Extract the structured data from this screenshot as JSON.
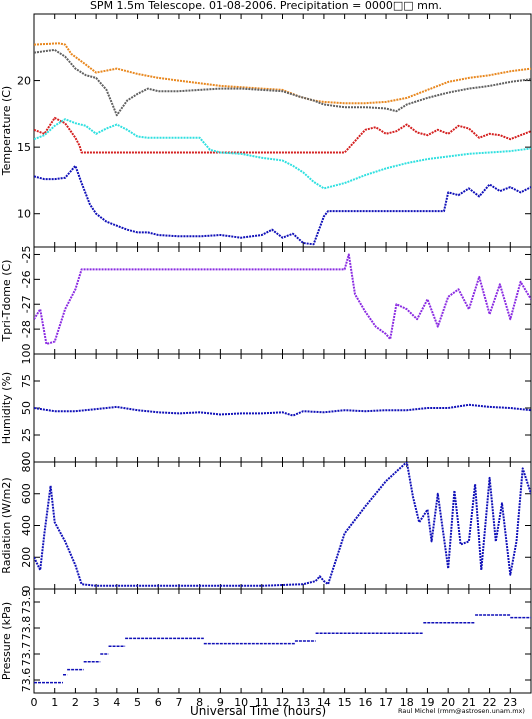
{
  "title": "SPM 1.5m Telescope. 01-08-2006. Precipitation = 0000□□ mm.",
  "xlabel": "Universal Time (hours)",
  "credit": "Raul Michel (rmm@astrosen.unam.mx)",
  "x_ticks": [
    "0",
    "1",
    "2",
    "3",
    "4",
    "5",
    "6",
    "7",
    "8",
    "9",
    "10",
    "11",
    "12",
    "13",
    "14",
    "15",
    "16",
    "17",
    "18",
    "19",
    "20",
    "21",
    "22",
    "23"
  ],
  "colors": {
    "orange": "#e8871e",
    "gray": "#606060",
    "red": "#d42020",
    "cyan": "#30e0e0",
    "blue": "#1010b8",
    "purple": "#8a2be2"
  },
  "chart_data": [
    {
      "type": "line",
      "ylabel": "Temperature (C)",
      "xlim": [
        0,
        24
      ],
      "ylim": [
        7.5,
        25
      ],
      "yticks": [
        10,
        15,
        20
      ],
      "series": [
        {
          "color": "#e8871e",
          "x": [
            0,
            1.2,
            1.5,
            1.8,
            2.5,
            3,
            4,
            5,
            6,
            7,
            8,
            9,
            10,
            11,
            12,
            12.8,
            13.5,
            14,
            15,
            16,
            17,
            18,
            19,
            20,
            21,
            22,
            23,
            24
          ],
          "y": [
            22.7,
            22.8,
            22.7,
            22.0,
            21.2,
            20.6,
            20.9,
            20.5,
            20.2,
            20.0,
            19.8,
            19.6,
            19.5,
            19.4,
            19.3,
            18.8,
            18.5,
            18.4,
            18.3,
            18.3,
            18.4,
            18.7,
            19.3,
            19.9,
            20.2,
            20.4,
            20.7,
            20.9
          ]
        },
        {
          "color": "#606060",
          "x": [
            0,
            1,
            1.5,
            2,
            2.5,
            3,
            3.5,
            4,
            4.5,
            5,
            5.5,
            6,
            7,
            8,
            9,
            10,
            11,
            12,
            12.8,
            13.5,
            14,
            15,
            16,
            17,
            17.5,
            18,
            19,
            20,
            21,
            22,
            23,
            24
          ],
          "y": [
            22.1,
            22.3,
            21.8,
            20.9,
            20.4,
            20.2,
            19.3,
            17.4,
            18.5,
            19.0,
            19.4,
            19.2,
            19.2,
            19.3,
            19.4,
            19.4,
            19.3,
            19.2,
            18.8,
            18.5,
            18.2,
            18.0,
            18.0,
            17.9,
            17.7,
            18.2,
            18.7,
            19.1,
            19.4,
            19.6,
            19.9,
            20.1
          ]
        },
        {
          "color": "#d42020",
          "x": [
            0,
            0.5,
            1,
            1.5,
            2,
            2.2,
            2.3,
            15,
            15.3,
            15.7,
            16,
            16.5,
            17,
            17.5,
            18,
            18.5,
            19,
            19.5,
            20,
            20.5,
            21,
            21.5,
            22,
            22.5,
            23,
            23.5,
            24
          ],
          "y": [
            16.3,
            16.0,
            17.2,
            16.8,
            15.7,
            15.1,
            14.6,
            14.6,
            15.1,
            15.8,
            16.3,
            16.5,
            16.0,
            16.2,
            16.7,
            16.1,
            15.9,
            16.3,
            16.0,
            16.6,
            16.4,
            15.7,
            16.0,
            15.9,
            15.6,
            15.9,
            16.2
          ]
        },
        {
          "color": "#30e0e0",
          "x": [
            0,
            0.5,
            1,
            1.5,
            2,
            2.5,
            3,
            3.5,
            4,
            4.5,
            5,
            5.5,
            6,
            7,
            8,
            8.5,
            9,
            10,
            11,
            12,
            12.5,
            13,
            13.5,
            14,
            15,
            16,
            17,
            18,
            19,
            20,
            21,
            22,
            23,
            24
          ],
          "y": [
            15.6,
            15.9,
            16.6,
            17.1,
            16.8,
            16.6,
            16.0,
            16.4,
            16.7,
            16.3,
            15.8,
            15.7,
            15.7,
            15.7,
            15.7,
            14.8,
            14.6,
            14.5,
            14.2,
            14.0,
            13.6,
            13.1,
            12.4,
            11.9,
            12.3,
            12.9,
            13.4,
            13.8,
            14.1,
            14.3,
            14.5,
            14.6,
            14.7,
            14.9
          ]
        },
        {
          "color": "#1010b8",
          "x": [
            0,
            0.5,
            1,
            1.5,
            2,
            2.3,
            2.7,
            3,
            3.5,
            4,
            4.5,
            5,
            5.5,
            6,
            7,
            8,
            9,
            10,
            11,
            11.5,
            12,
            12.5,
            13,
            13.5,
            14,
            14.2,
            19.8,
            20,
            20.5,
            21,
            21.5,
            22,
            22.5,
            23,
            23.5,
            24
          ],
          "y": [
            12.8,
            12.6,
            12.6,
            12.7,
            13.6,
            12.3,
            10.7,
            10.0,
            9.4,
            9.1,
            8.8,
            8.6,
            8.6,
            8.4,
            8.3,
            8.3,
            8.4,
            8.2,
            8.4,
            8.8,
            8.2,
            8.5,
            7.8,
            7.7,
            9.8,
            10.2,
            10.2,
            11.6,
            11.4,
            11.9,
            11.3,
            12.2,
            11.7,
            12.0,
            11.6,
            12.0
          ]
        }
      ]
    },
    {
      "type": "line",
      "ylabel": "Tpri-Tdome (C)",
      "xlim": [
        0,
        24
      ],
      "ylim": [
        -29,
        -24.7
      ],
      "yticks": [
        -28,
        -27,
        -26,
        -25
      ],
      "series": [
        {
          "color": "#8a2be2",
          "x": [
            0,
            0.3,
            0.6,
            1,
            1.5,
            2,
            2.3,
            2.5,
            15,
            15.2,
            15.5,
            16,
            16.5,
            17,
            17.2,
            17.5,
            18,
            18.5,
            19,
            19.5,
            20,
            20.5,
            21,
            21.5,
            22,
            22.5,
            23,
            23.5,
            24
          ],
          "y": [
            -27.6,
            -27.2,
            -28.6,
            -28.5,
            -27.2,
            -26.4,
            -25.6,
            -25.6,
            -25.6,
            -25.0,
            -26.6,
            -27.3,
            -27.9,
            -28.2,
            -28.4,
            -27.0,
            -27.2,
            -27.6,
            -26.8,
            -27.9,
            -26.7,
            -26.4,
            -27.2,
            -25.9,
            -27.4,
            -26.2,
            -27.6,
            -26.1,
            -26.8
          ]
        }
      ]
    },
    {
      "type": "line",
      "ylabel": "Humidity (%)",
      "xlim": [
        0,
        24
      ],
      "ylim": [
        0,
        100
      ],
      "yticks": [
        0,
        25,
        50,
        75,
        100
      ],
      "series": [
        {
          "color": "#1010b8",
          "x": [
            0,
            1,
            2,
            3,
            4,
            5,
            6,
            7,
            8,
            9,
            10,
            11,
            12,
            12.5,
            13,
            14,
            15,
            16,
            17,
            18,
            19,
            20,
            21,
            22,
            23,
            24
          ],
          "y": [
            50,
            47,
            47,
            49,
            51,
            48,
            46,
            45,
            46,
            44,
            45,
            45,
            46,
            43,
            47,
            46,
            48,
            47,
            48,
            48,
            50,
            50,
            53,
            51,
            50,
            48
          ]
        }
      ]
    },
    {
      "type": "line",
      "ylabel": "Radiation (W/m2)",
      "xlim": [
        0,
        24
      ],
      "ylim": [
        0,
        800
      ],
      "yticks": [
        0,
        200,
        400,
        600,
        800
      ],
      "series": [
        {
          "color": "#1010b8",
          "x": [
            0,
            0.3,
            0.5,
            0.8,
            1,
            1.5,
            2,
            2.3,
            3,
            5,
            8,
            11,
            13,
            13.6,
            13.8,
            14,
            14.2,
            15,
            16,
            17,
            18,
            18.3,
            18.6,
            19,
            19.2,
            19.5,
            20,
            20.3,
            20.6,
            21,
            21.3,
            21.6,
            22,
            22.3,
            22.6,
            23,
            23.3,
            23.6,
            24
          ],
          "y": [
            200,
            120,
            350,
            650,
            420,
            300,
            150,
            30,
            20,
            20,
            20,
            20,
            30,
            50,
            80,
            50,
            30,
            350,
            520,
            680,
            800,
            580,
            420,
            500,
            300,
            600,
            130,
            620,
            280,
            300,
            660,
            120,
            700,
            300,
            540,
            90,
            300,
            760,
            600
          ]
        }
      ]
    },
    {
      "type": "scatter",
      "ylabel": "Pressure (kPa)",
      "xlim": [
        0,
        24
      ],
      "ylim": [
        73.55,
        73.95
      ],
      "yticks": [
        73.6,
        73.7,
        73.8,
        73.9
      ],
      "series": [
        {
          "color": "#1010b8",
          "x": [
            0,
            1.4,
            1.6,
            2.4,
            3.2,
            3.6,
            4.4,
            8.2,
            12.6,
            13.6,
            18.8,
            21.3,
            23.0,
            24
          ],
          "y": [
            73.59,
            73.62,
            73.64,
            73.67,
            73.7,
            73.73,
            73.76,
            73.74,
            73.75,
            73.78,
            73.82,
            73.85,
            73.84,
            73.84
          ]
        }
      ]
    }
  ]
}
